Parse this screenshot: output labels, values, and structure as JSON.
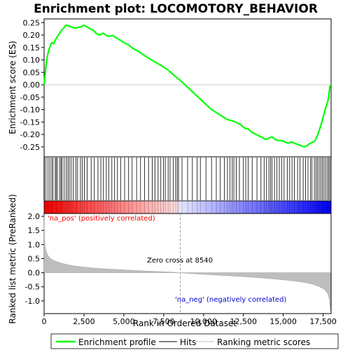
{
  "chart_data": {
    "type": "line",
    "title": "Enrichment plot: LOCOMOTORY_BEHAVIOR",
    "top_panel": {
      "ylabel": "Enrichment score (ES)",
      "ylim": [
        -0.29,
        0.265
      ],
      "yticks": [
        0.25,
        0.2,
        0.15,
        0.1,
        0.05,
        0.0,
        -0.05,
        -0.1,
        -0.15,
        -0.2,
        -0.25
      ],
      "ytick_labels": [
        "0.25",
        "0.20",
        "0.15",
        "0.10",
        "0.05",
        "0.00",
        "-0.05",
        "-0.10",
        "-0.15",
        "-0.20",
        "-0.25"
      ],
      "series_name": "Enrichment profile",
      "color": "#00ff00",
      "x": [
        0,
        80,
        150,
        220,
        300,
        400,
        500,
        600,
        700,
        800,
        900,
        1000,
        1100,
        1200,
        1300,
        1400,
        1600,
        1800,
        2000,
        2200,
        2400,
        2500,
        2700,
        2900,
        3100,
        3300,
        3500,
        3700,
        3900,
        4100,
        4300,
        4500,
        4700,
        5000,
        5300,
        5600,
        5900,
        6200,
        6600,
        7000,
        7400,
        7800,
        8200,
        8540,
        9000,
        9500,
        10000,
        10500,
        11000,
        11500,
        11800,
        12000,
        12300,
        12600,
        12800,
        13000,
        13300,
        13600,
        13900,
        14100,
        14300,
        14500,
        14700,
        14900,
        15100,
        15300,
        15500,
        15700,
        15900,
        16100,
        16300,
        16500,
        16700,
        16900,
        17000,
        17100,
        17200,
        17300,
        17400,
        17500,
        17600,
        17700,
        17800,
        17850,
        17900,
        17950
      ],
      "y": [
        0.0,
        0.05,
        0.09,
        0.12,
        0.14,
        0.16,
        0.17,
        0.165,
        0.18,
        0.19,
        0.2,
        0.21,
        0.22,
        0.225,
        0.235,
        0.24,
        0.235,
        0.23,
        0.228,
        0.232,
        0.235,
        0.24,
        0.232,
        0.225,
        0.218,
        0.205,
        0.2,
        0.208,
        0.198,
        0.195,
        0.198,
        0.19,
        0.182,
        0.17,
        0.16,
        0.145,
        0.135,
        0.122,
        0.105,
        0.09,
        0.075,
        0.058,
        0.035,
        0.018,
        -0.01,
        -0.04,
        -0.07,
        -0.1,
        -0.12,
        -0.14,
        -0.145,
        -0.15,
        -0.16,
        -0.175,
        -0.178,
        -0.19,
        -0.2,
        -0.21,
        -0.22,
        -0.215,
        -0.21,
        -0.22,
        -0.225,
        -0.225,
        -0.23,
        -0.235,
        -0.23,
        -0.235,
        -0.24,
        -0.245,
        -0.25,
        -0.245,
        -0.235,
        -0.23,
        -0.225,
        -0.21,
        -0.195,
        -0.175,
        -0.155,
        -0.13,
        -0.105,
        -0.085,
        -0.065,
        -0.045,
        -0.02,
        0.0
      ]
    },
    "hits": [
      20,
      120,
      250,
      360,
      480,
      560,
      700,
      760,
      840,
      980,
      1060,
      1130,
      1260,
      1380,
      1490,
      1580,
      1700,
      1830,
      2000,
      2100,
      2280,
      2400,
      2530,
      2700,
      2950,
      3150,
      3380,
      3560,
      3720,
      3900,
      4050,
      4250,
      4420,
      4600,
      4800,
      5050,
      5300,
      5520,
      5800,
      6050,
      6300,
      6550,
      6780,
      6950,
      7150,
      7320,
      7480,
      7600,
      7780,
      7900,
      8100,
      8250,
      8350,
      8430,
      8650,
      9000,
      9300,
      9600,
      9800,
      10150,
      10500,
      10800,
      11050,
      11300,
      11500,
      11650,
      11800,
      11900,
      12050,
      12250,
      12500,
      12650,
      12800,
      13050,
      13350,
      13600,
      13800,
      13950,
      14100,
      14200,
      14300,
      14450,
      14600,
      14750,
      14900,
      15050,
      15250,
      15400,
      15550,
      15700,
      15900,
      16050,
      16250,
      16400,
      16550,
      16700,
      16800,
      16950,
      17050,
      17150,
      17250,
      17350,
      17450,
      17550,
      17650,
      17750,
      17850,
      17920
    ],
    "bottom_panel": {
      "ylabel": "Ranked list metric (PreRanked)",
      "ylim": [
        -1.45,
        2.1
      ],
      "yticks": [
        2.0,
        1.5,
        1.0,
        0.5,
        0.0,
        -0.5,
        -1.0
      ],
      "ytick_labels": [
        "2.0",
        "1.5",
        "1.0",
        "0.5",
        "0.0",
        "-0.5",
        "-1.0"
      ],
      "metric_x": [
        0,
        20,
        60,
        120,
        200,
        300,
        450,
        650,
        900,
        1200,
        1600,
        2000,
        2500,
        3000,
        3600,
        4200,
        5000,
        6000,
        7000,
        8000,
        8540,
        9200,
        10000,
        11000,
        12000,
        13000,
        14000,
        15000,
        15800,
        16400,
        16900,
        17300,
        17600,
        17800,
        17900,
        17960
      ],
      "metric_y": [
        2.05,
        1.2,
        0.95,
        0.78,
        0.65,
        0.56,
        0.48,
        0.42,
        0.37,
        0.32,
        0.27,
        0.23,
        0.2,
        0.17,
        0.145,
        0.125,
        0.1,
        0.07,
        0.045,
        0.02,
        0.0,
        -0.03,
        -0.06,
        -0.09,
        -0.12,
        -0.16,
        -0.2,
        -0.25,
        -0.3,
        -0.35,
        -0.42,
        -0.5,
        -0.6,
        -0.75,
        -0.95,
        -1.35
      ]
    },
    "xlabel": "Rank in Ordered Dataset",
    "xlim": [
      0,
      18000
    ],
    "xticks": [
      0,
      2500,
      5000,
      7500,
      10000,
      12500,
      15000,
      17500
    ],
    "xtick_labels": [
      "0",
      "2,500",
      "5,000",
      "7,500",
      "10,000",
      "12,500",
      "15,000",
      "17,500"
    ],
    "zero_cross": 8540,
    "annotations": {
      "zero_cross": "Zero cross at 8540",
      "pos_label": "'na_pos' (positively correlated)",
      "neg_label": "'na_neg' (negatively correlated)"
    },
    "legend": {
      "placement": "bottom",
      "items": [
        {
          "label": "Enrichment profile",
          "color": "#00ff00"
        },
        {
          "label": "Hits",
          "color": "#000000"
        },
        {
          "label": "Ranking metric scores",
          "color": "#bebebe"
        }
      ]
    },
    "colors": {
      "pos_bar": "#ff0000",
      "neg_bar": "#0000ff",
      "pos_label": "#ff0000",
      "neg_label": "#0000cc",
      "metric_fill": "#bebebe"
    }
  }
}
